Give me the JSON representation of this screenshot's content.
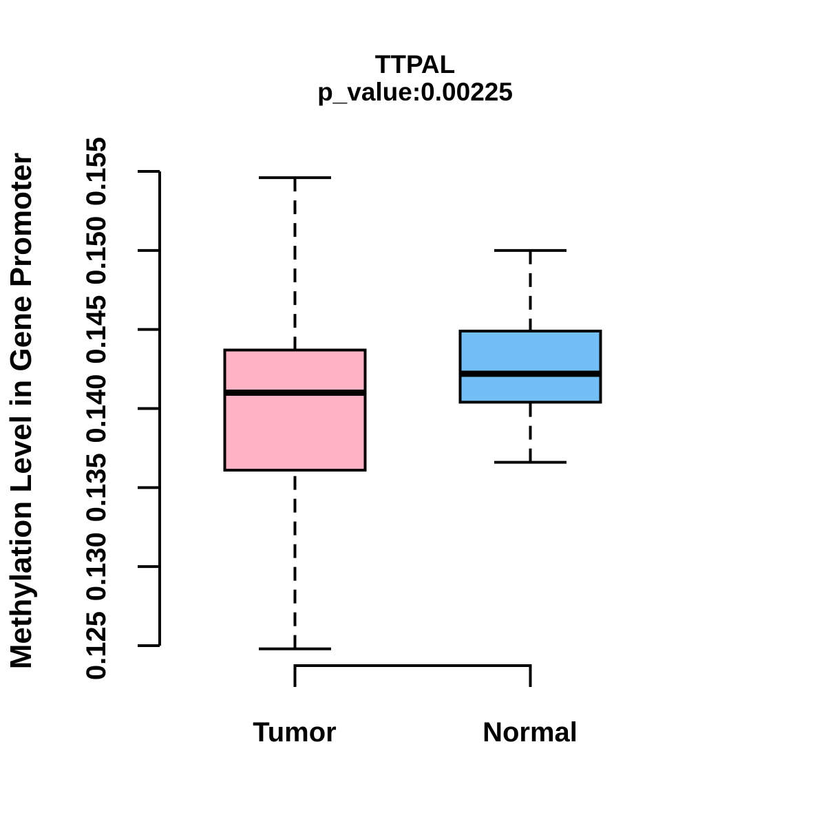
{
  "chart_data": {
    "type": "boxplot",
    "title": "TTPAL",
    "subtitle": "p_value:0.00225",
    "ylabel": "Methylation Level in Gene Promoter",
    "xlabel": "",
    "ylim": [
      0.125,
      0.155
    ],
    "ytick_labels": [
      "0.125",
      "0.130",
      "0.135",
      "0.140",
      "0.145",
      "0.150",
      "0.155"
    ],
    "grid": false,
    "legend": "none",
    "line_color": "#000000",
    "background_color": "#ffffff",
    "groups": [
      {
        "label": "Tumor",
        "fill_color": "#FFB3C4",
        "whisker_low": 0.1248,
        "q1": 0.1361,
        "median": 0.141,
        "q3": 0.1437,
        "whisker_high": 0.1546
      },
      {
        "label": "Normal",
        "fill_color": "#73BFF5",
        "whisker_low": 0.1366,
        "q1": 0.1404,
        "median": 0.1422,
        "q3": 0.1449,
        "whisker_high": 0.15
      }
    ]
  }
}
